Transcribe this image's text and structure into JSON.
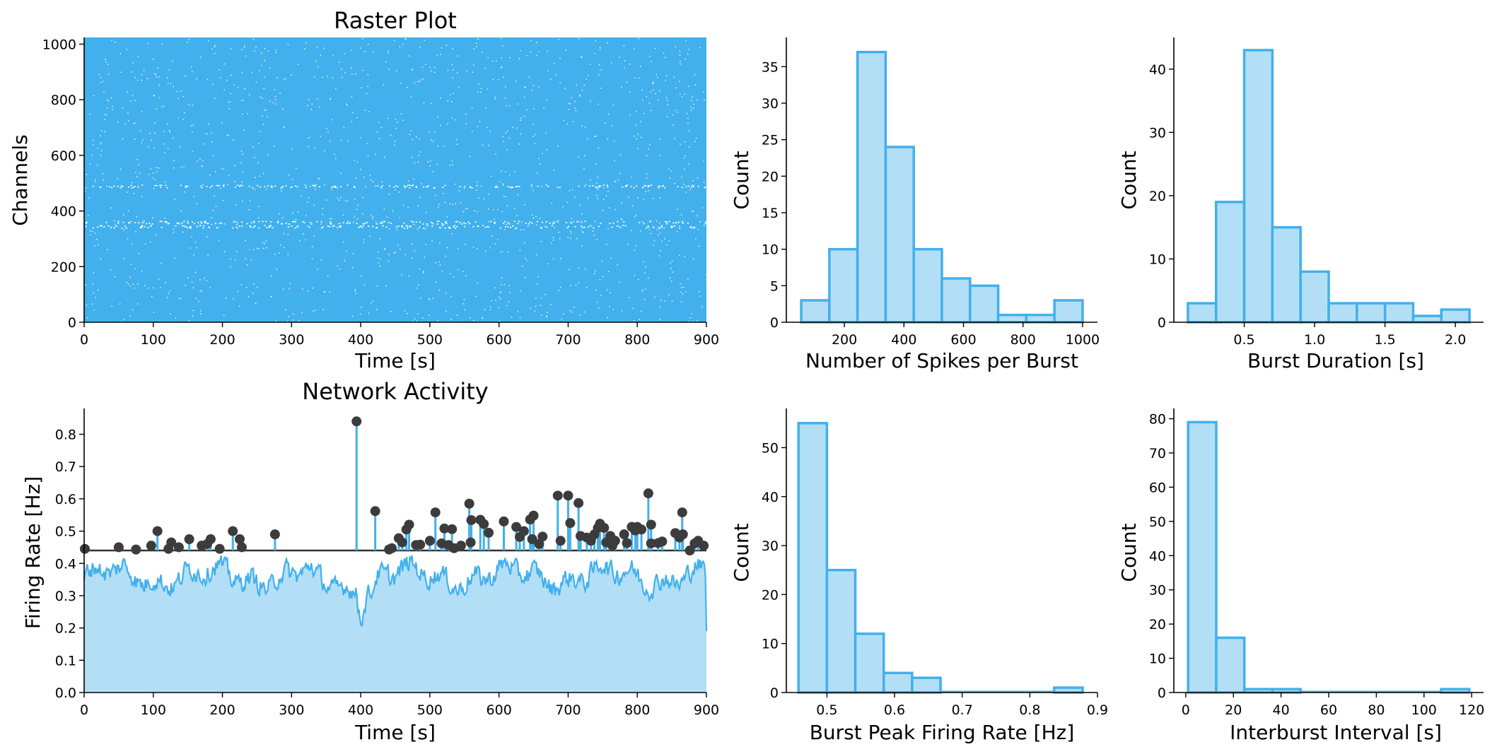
{
  "colors": {
    "primary": "#42b0ec",
    "fill_light": "#b3dff6",
    "marker": "#3c3c3c",
    "threshold": "#333333",
    "gap": "#ffffff"
  },
  "chart_data": [
    {
      "id": "raster",
      "type": "scatter",
      "title": "Raster Plot",
      "xlabel": "Time [s]",
      "ylabel": "Channels",
      "xlim": [
        0,
        900
      ],
      "ylim": [
        0,
        1024
      ],
      "xticks": [
        0,
        100,
        200,
        300,
        400,
        500,
        600,
        700,
        800,
        900
      ],
      "yticks": [
        0,
        200,
        400,
        600,
        800,
        1000
      ],
      "grid": false,
      "sparse_channel_bands": [
        345,
        360,
        490
      ]
    },
    {
      "id": "network_activity",
      "type": "line",
      "title": "Network Activity",
      "xlabel": "Time [s]",
      "ylabel": "Firing Rate [Hz]",
      "xlim": [
        0,
        900
      ],
      "ylim": [
        0,
        0.88
      ],
      "xticks": [
        0,
        100,
        200,
        300,
        400,
        500,
        600,
        700,
        800,
        900
      ],
      "yticks": [
        0.0,
        0.1,
        0.2,
        0.3,
        0.4,
        0.5,
        0.6,
        0.7,
        0.8
      ],
      "threshold": 0.44,
      "grid": false,
      "peaks": [
        [
          1,
          0.445
        ],
        [
          50,
          0.45
        ],
        [
          75,
          0.443
        ],
        [
          97,
          0.455
        ],
        [
          106,
          0.5
        ],
        [
          122,
          0.445
        ],
        [
          126,
          0.465
        ],
        [
          137,
          0.45
        ],
        [
          152,
          0.475
        ],
        [
          170,
          0.455
        ],
        [
          178,
          0.46
        ],
        [
          183,
          0.475
        ],
        [
          196,
          0.445
        ],
        [
          215,
          0.5
        ],
        [
          225,
          0.475
        ],
        [
          228,
          0.45
        ],
        [
          276,
          0.49
        ],
        [
          394,
          0.84
        ],
        [
          421,
          0.562
        ],
        [
          441,
          0.443
        ],
        [
          445,
          0.447
        ],
        [
          455,
          0.478
        ],
        [
          460,
          0.465
        ],
        [
          466,
          0.505
        ],
        [
          470,
          0.52
        ],
        [
          480,
          0.457
        ],
        [
          486,
          0.458
        ],
        [
          500,
          0.47
        ],
        [
          508,
          0.558
        ],
        [
          517,
          0.462
        ],
        [
          521,
          0.508
        ],
        [
          527,
          0.457
        ],
        [
          532,
          0.506
        ],
        [
          535,
          0.447
        ],
        [
          545,
          0.455
        ],
        [
          557,
          0.585
        ],
        [
          559,
          0.465
        ],
        [
          560,
          0.534
        ],
        [
          573,
          0.535
        ],
        [
          578,
          0.522
        ],
        [
          585,
          0.495
        ],
        [
          607,
          0.53
        ],
        [
          625,
          0.513
        ],
        [
          630,
          0.482
        ],
        [
          636,
          0.5
        ],
        [
          645,
          0.536
        ],
        [
          648,
          0.475
        ],
        [
          650,
          0.548
        ],
        [
          658,
          0.46
        ],
        [
          663,
          0.483
        ],
        [
          685,
          0.61
        ],
        [
          689,
          0.47
        ],
        [
          700,
          0.61
        ],
        [
          703,
          0.525
        ],
        [
          715,
          0.587
        ],
        [
          718,
          0.485
        ],
        [
          727,
          0.48
        ],
        [
          733,
          0.47
        ],
        [
          738,
          0.49
        ],
        [
          743,
          0.51
        ],
        [
          746,
          0.523
        ],
        [
          752,
          0.51
        ],
        [
          755,
          0.465
        ],
        [
          761,
          0.485
        ],
        [
          764,
          0.455
        ],
        [
          768,
          0.47
        ],
        [
          781,
          0.49
        ],
        [
          785,
          0.463
        ],
        [
          792,
          0.513
        ],
        [
          797,
          0.502
        ],
        [
          800,
          0.513
        ],
        [
          806,
          0.505
        ],
        [
          816,
          0.617
        ],
        [
          820,
          0.52
        ],
        [
          820,
          0.462
        ],
        [
          830,
          0.463
        ],
        [
          836,
          0.468
        ],
        [
          855,
          0.494
        ],
        [
          861,
          0.48
        ],
        [
          865,
          0.558
        ],
        [
          866,
          0.49
        ],
        [
          876,
          0.44
        ],
        [
          883,
          0.462
        ],
        [
          888,
          0.47
        ],
        [
          896,
          0.455
        ]
      ]
    },
    {
      "id": "spikes_per_burst",
      "type": "bar",
      "xlabel": "Number of Spikes per Burst",
      "ylabel": "Count",
      "bin_edges": [
        55,
        149.5,
        244,
        338.5,
        433,
        527.5,
        622,
        716.5,
        811,
        905.5,
        1000
      ],
      "values": [
        3,
        10,
        37,
        24,
        10,
        6,
        5,
        1,
        1,
        3
      ],
      "xlim": [
        5,
        1050
      ],
      "ylim": [
        0,
        39
      ],
      "xticks": [
        200,
        400,
        600,
        800,
        1000
      ],
      "yticks": [
        0,
        5,
        10,
        15,
        20,
        25,
        30,
        35
      ]
    },
    {
      "id": "burst_duration",
      "type": "bar",
      "xlabel": "Burst Duration [s]",
      "ylabel": "Count",
      "bin_edges": [
        0.1,
        0.3,
        0.5,
        0.7,
        0.9,
        1.1,
        1.3,
        1.5,
        1.7,
        1.9,
        2.1
      ],
      "values": [
        3,
        19,
        43,
        15,
        8,
        3,
        3,
        3,
        1,
        2
      ],
      "xlim": [
        0.0,
        2.2
      ],
      "ylim": [
        0,
        45
      ],
      "xticks": [
        0.5,
        1.0,
        1.5,
        2.0
      ],
      "yticks": [
        0,
        10,
        20,
        30,
        40
      ]
    },
    {
      "id": "burst_peak_rate",
      "type": "bar",
      "xlabel": "Burst Peak Firing Rate [Hz]",
      "ylabel": "Count",
      "bin_edges": [
        0.458,
        0.5,
        0.542,
        0.584,
        0.626,
        0.668,
        0.71,
        0.752,
        0.794,
        0.836,
        0.878
      ],
      "values": [
        55,
        25,
        12,
        4,
        3,
        0,
        0,
        0,
        0,
        1
      ],
      "xlim": [
        0.44,
        0.9
      ],
      "ylim": [
        0,
        58
      ],
      "xticks": [
        0.5,
        0.6,
        0.7,
        0.8,
        0.9
      ],
      "yticks": [
        0,
        10,
        20,
        30,
        40,
        50
      ]
    },
    {
      "id": "interburst_interval",
      "type": "bar",
      "xlabel": "Interburst Interval [s]",
      "ylabel": "Count",
      "bin_edges": [
        1,
        12.8,
        24.6,
        36.4,
        48.2,
        60,
        71.8,
        83.6,
        95.4,
        107.2,
        119
      ],
      "values": [
        79,
        16,
        1,
        1,
        0,
        0,
        0,
        0,
        0,
        1
      ],
      "xlim": [
        -5,
        125
      ],
      "ylim": [
        0,
        83
      ],
      "xticks": [
        0,
        20,
        40,
        60,
        80,
        100,
        120
      ],
      "yticks": [
        0,
        10,
        20,
        30,
        40,
        50,
        60,
        70,
        80
      ]
    }
  ]
}
